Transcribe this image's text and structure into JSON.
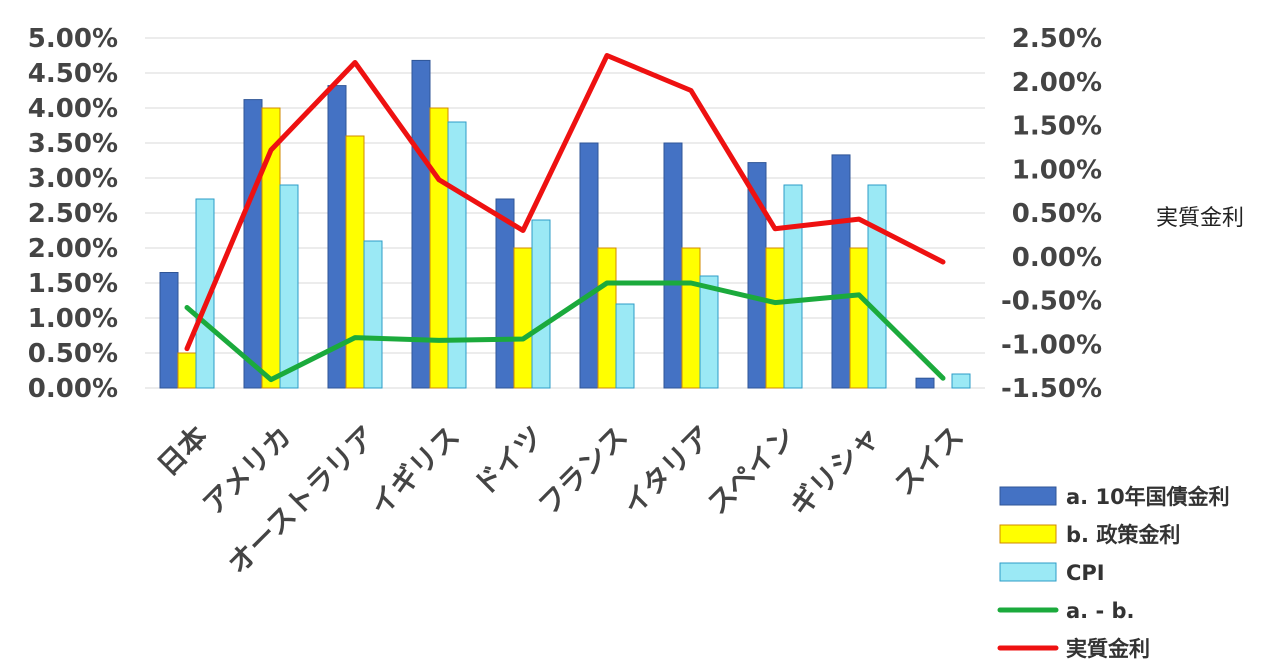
{
  "chart_data": {
    "type": "bar",
    "categories": [
      "日本",
      "アメリカ",
      "オーストラリア",
      "イギリス",
      "ドイツ",
      "フランス",
      "イタリア",
      "スペイン",
      "ギリシャ",
      "スイス"
    ],
    "series": [
      {
        "name": "a. 10年国債金利",
        "type": "bar",
        "axis": "left",
        "color": "#4472C4",
        "values": [
          1.65,
          4.12,
          4.32,
          4.68,
          2.7,
          3.5,
          3.5,
          3.22,
          3.33,
          0.14
        ]
      },
      {
        "name": "b. 政策金利",
        "type": "bar",
        "axis": "left",
        "color": "#FFFF00",
        "values": [
          0.5,
          4.0,
          3.6,
          4.0,
          2.0,
          2.0,
          2.0,
          2.0,
          2.0,
          null
        ]
      },
      {
        "name": "CPI",
        "type": "bar",
        "axis": "left",
        "color": "#9BE9F5",
        "values": [
          2.7,
          2.9,
          2.1,
          3.8,
          2.4,
          1.2,
          1.6,
          2.9,
          2.9,
          0.2
        ]
      },
      {
        "name": "a. - b.",
        "type": "line",
        "axis": "left",
        "color": "#1BAA3C",
        "values": [
          1.15,
          0.12,
          0.72,
          0.68,
          0.7,
          1.5,
          1.5,
          1.22,
          1.33,
          0.14
        ]
      },
      {
        "name": "実質金利",
        "type": "line",
        "axis": "right",
        "color": "#EE1111",
        "values": [
          -1.05,
          1.22,
          2.22,
          0.88,
          0.3,
          2.3,
          1.9,
          0.32,
          0.43,
          -0.06
        ]
      }
    ],
    "left_axis": {
      "min": 0,
      "max": 5,
      "step": 0.5,
      "tick_labels": [
        "0.00%",
        "0.50%",
        "1.00%",
        "1.50%",
        "2.00%",
        "2.50%",
        "3.00%",
        "3.50%",
        "4.00%",
        "4.50%",
        "5.00%"
      ]
    },
    "right_axis": {
      "label": "実質金利",
      "min": -1.5,
      "max": 2.5,
      "step": 0.5,
      "tick_labels": [
        "-1.50%",
        "-1.00%",
        "-0.50%",
        "0.00%",
        "0.50%",
        "1.00%",
        "1.50%",
        "2.00%",
        "2.50%"
      ]
    },
    "grid": true,
    "legend_position": "bottom-right"
  }
}
